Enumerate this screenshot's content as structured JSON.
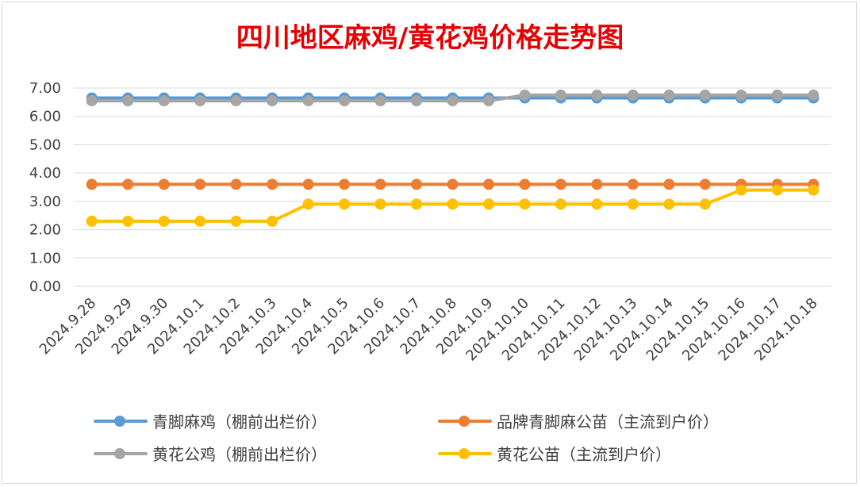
{
  "chart_data": {
    "type": "line",
    "title": "四川地区麻鸡/黄花鸡价格走势图",
    "ylim": [
      0,
      7
    ],
    "yticks": [
      "0.00",
      "1.00",
      "2.00",
      "3.00",
      "4.00",
      "5.00",
      "6.00",
      "7.00"
    ],
    "grid": true,
    "legend_position": "bottom",
    "categories": [
      "2024.9.28",
      "2024.9.29",
      "2024.9.30",
      "2024.10.1",
      "2024.10.2",
      "2024.10.3",
      "2024.10.4",
      "2024.10.5",
      "2024.10.6",
      "2024.10.7",
      "2024.10.8",
      "2024.10.9",
      "2024.10.10",
      "2024.10.11",
      "2024.10.12",
      "2024.10.13",
      "2024.10.14",
      "2024.10.15",
      "2024.10.16",
      "2024.10.17",
      "2024.10.18"
    ],
    "series": [
      {
        "name": "青脚麻鸡（棚前出栏价）",
        "color": "#5b9bd5",
        "values": [
          6.65,
          6.65,
          6.65,
          6.65,
          6.65,
          6.65,
          6.65,
          6.65,
          6.65,
          6.65,
          6.65,
          6.65,
          6.65,
          6.65,
          6.65,
          6.65,
          6.65,
          6.65,
          6.65,
          6.65,
          6.65
        ]
      },
      {
        "name": "品牌青脚麻公苗（主流到户价）",
        "color": "#ed7d31",
        "values": [
          3.6,
          3.6,
          3.6,
          3.6,
          3.6,
          3.6,
          3.6,
          3.6,
          3.6,
          3.6,
          3.6,
          3.6,
          3.6,
          3.6,
          3.6,
          3.6,
          3.6,
          3.6,
          3.6,
          3.6,
          3.6
        ]
      },
      {
        "name": "黄花公鸡（棚前出栏价）",
        "color": "#a5a5a5",
        "values": [
          6.55,
          6.55,
          6.55,
          6.55,
          6.55,
          6.55,
          6.55,
          6.55,
          6.55,
          6.55,
          6.55,
          6.55,
          6.75,
          6.75,
          6.75,
          6.75,
          6.75,
          6.75,
          6.75,
          6.75,
          6.75
        ]
      },
      {
        "name": "黄花公苗（主流到户价）",
        "color": "#ffc000",
        "values": [
          2.3,
          2.3,
          2.3,
          2.3,
          2.3,
          2.3,
          2.9,
          2.9,
          2.9,
          2.9,
          2.9,
          2.9,
          2.9,
          2.9,
          2.9,
          2.9,
          2.9,
          2.9,
          3.4,
          3.4,
          3.4
        ]
      }
    ]
  }
}
